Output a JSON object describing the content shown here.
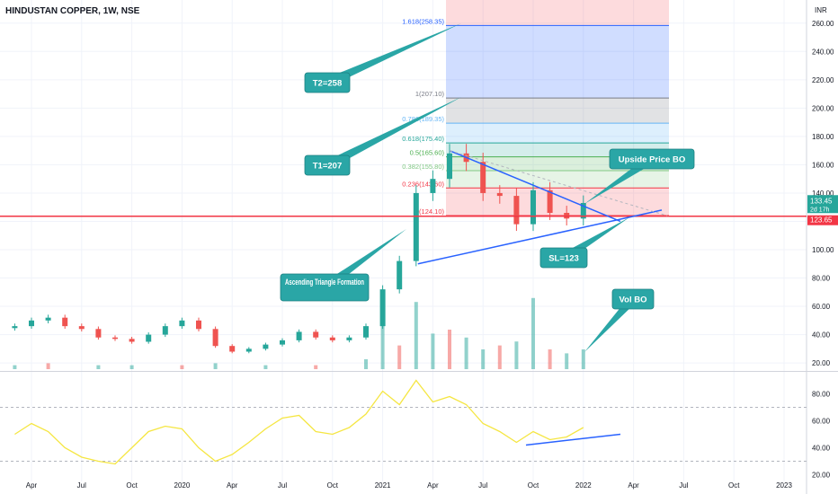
{
  "chart_data": {
    "type": "candlestick",
    "title": "HINDUSTAN COPPER, 1W, NSE",
    "currency_label": "INR",
    "x_ticks": [
      "Apr",
      "Jul",
      "Oct",
      "2020",
      "Apr",
      "Jul",
      "Oct",
      "2021",
      "Apr",
      "Jul",
      "Oct",
      "2022",
      "Apr",
      "Jul",
      "Oct",
      "2023"
    ],
    "price_axis": {
      "ticks": [
        20,
        40,
        60,
        80,
        100,
        120,
        140,
        160,
        180,
        200,
        220,
        240,
        260
      ],
      "range": [
        15,
        270
      ]
    },
    "rsi_axis": {
      "ticks": [
        20,
        40,
        60,
        80
      ],
      "range": [
        15,
        95
      ]
    },
    "last_price": {
      "value": "133.45",
      "countdown": "2d 17h"
    },
    "support_level": {
      "value": "123.65"
    },
    "fib_levels": [
      {
        "label": "1.618(258.35)",
        "value": 258.35,
        "color": "#2962ff"
      },
      {
        "label": "1(207.10)",
        "value": 207.1,
        "color": "#787b86"
      },
      {
        "label": "0.786(189.35)",
        "value": 189.35,
        "color": "#64b5f6"
      },
      {
        "label": "0.618(175.40)",
        "value": 175.4,
        "color": "#26a69a"
      },
      {
        "label": "0.5(165.60)",
        "value": 165.6,
        "color": "#4caf50"
      },
      {
        "label": "0.382(155.80)",
        "value": 155.8,
        "color": "#81c784"
      },
      {
        "label": "0.236(143.60)",
        "value": 143.6,
        "color": "#f23645"
      },
      {
        "label": "0(124.10)",
        "value": 124.1,
        "color": "#f23645"
      }
    ],
    "price_series": [
      {
        "x": "2019-03",
        "y": 46
      },
      {
        "x": "2019-04",
        "y": 50
      },
      {
        "x": "2019-05",
        "y": 52
      },
      {
        "x": "2019-06",
        "y": 46
      },
      {
        "x": "2019-07",
        "y": 44
      },
      {
        "x": "2019-08",
        "y": 38
      },
      {
        "x": "2019-09",
        "y": 37
      },
      {
        "x": "2019-10",
        "y": 35
      },
      {
        "x": "2019-11",
        "y": 40
      },
      {
        "x": "2019-12",
        "y": 46
      },
      {
        "x": "2020-01",
        "y": 50
      },
      {
        "x": "2020-02",
        "y": 44
      },
      {
        "x": "2020-03",
        "y": 32
      },
      {
        "x": "2020-04",
        "y": 28
      },
      {
        "x": "2020-05",
        "y": 30
      },
      {
        "x": "2020-06",
        "y": 33
      },
      {
        "x": "2020-07",
        "y": 36
      },
      {
        "x": "2020-08",
        "y": 42
      },
      {
        "x": "2020-09",
        "y": 38
      },
      {
        "x": "2020-10",
        "y": 36
      },
      {
        "x": "2020-11",
        "y": 38
      },
      {
        "x": "2020-12",
        "y": 46
      },
      {
        "x": "2021-01",
        "y": 72
      },
      {
        "x": "2021-02",
        "y": 92
      },
      {
        "x": "2021-03",
        "y": 140
      },
      {
        "x": "2021-04",
        "y": 150
      },
      {
        "x": "2021-05",
        "y": 168
      },
      {
        "x": "2021-06",
        "y": 162
      },
      {
        "x": "2021-07",
        "y": 140
      },
      {
        "x": "2021-08",
        "y": 138
      },
      {
        "x": "2021-09",
        "y": 118
      },
      {
        "x": "2021-10",
        "y": 142
      },
      {
        "x": "2021-11",
        "y": 126
      },
      {
        "x": "2021-12",
        "y": 122
      },
      {
        "x": "2022-01",
        "y": 133
      }
    ],
    "volume_series": [
      {
        "x": "2019-03",
        "y": 2
      },
      {
        "x": "2019-05",
        "y": 3
      },
      {
        "x": "2019-08",
        "y": 2
      },
      {
        "x": "2019-10",
        "y": 2
      },
      {
        "x": "2020-01",
        "y": 2
      },
      {
        "x": "2020-03",
        "y": 3
      },
      {
        "x": "2020-06",
        "y": 2
      },
      {
        "x": "2020-09",
        "y": 2
      },
      {
        "x": "2020-12",
        "y": 5
      },
      {
        "x": "2021-01",
        "y": 22
      },
      {
        "x": "2021-02",
        "y": 12
      },
      {
        "x": "2021-03",
        "y": 34
      },
      {
        "x": "2021-04",
        "y": 18
      },
      {
        "x": "2021-05",
        "y": 20
      },
      {
        "x": "2021-06",
        "y": 16
      },
      {
        "x": "2021-07",
        "y": 10
      },
      {
        "x": "2021-08",
        "y": 12
      },
      {
        "x": "2021-09",
        "y": 14
      },
      {
        "x": "2021-10",
        "y": 36
      },
      {
        "x": "2021-11",
        "y": 10
      },
      {
        "x": "2021-12",
        "y": 8
      },
      {
        "x": "2022-01",
        "y": 10
      }
    ],
    "rsi_series": [
      {
        "x": "2019-03",
        "y": 50
      },
      {
        "x": "2019-04",
        "y": 58
      },
      {
        "x": "2019-05",
        "y": 52
      },
      {
        "x": "2019-06",
        "y": 40
      },
      {
        "x": "2019-07",
        "y": 33
      },
      {
        "x": "2019-08",
        "y": 30
      },
      {
        "x": "2019-09",
        "y": 28
      },
      {
        "x": "2019-10",
        "y": 40
      },
      {
        "x": "2019-11",
        "y": 52
      },
      {
        "x": "2019-12",
        "y": 56
      },
      {
        "x": "2020-01",
        "y": 54
      },
      {
        "x": "2020-02",
        "y": 40
      },
      {
        "x": "2020-03",
        "y": 30
      },
      {
        "x": "2020-04",
        "y": 35
      },
      {
        "x": "2020-05",
        "y": 44
      },
      {
        "x": "2020-06",
        "y": 54
      },
      {
        "x": "2020-07",
        "y": 62
      },
      {
        "x": "2020-08",
        "y": 64
      },
      {
        "x": "2020-09",
        "y": 52
      },
      {
        "x": "2020-10",
        "y": 50
      },
      {
        "x": "2020-11",
        "y": 55
      },
      {
        "x": "2020-12",
        "y": 65
      },
      {
        "x": "2021-01",
        "y": 82
      },
      {
        "x": "2021-02",
        "y": 72
      },
      {
        "x": "2021-03",
        "y": 90
      },
      {
        "x": "2021-04",
        "y": 74
      },
      {
        "x": "2021-05",
        "y": 78
      },
      {
        "x": "2021-06",
        "y": 72
      },
      {
        "x": "2021-07",
        "y": 58
      },
      {
        "x": "2021-08",
        "y": 52
      },
      {
        "x": "2021-09",
        "y": 44
      },
      {
        "x": "2021-10",
        "y": 52
      },
      {
        "x": "2021-11",
        "y": 46
      },
      {
        "x": "2021-12",
        "y": 48
      },
      {
        "x": "2022-01",
        "y": 55
      }
    ],
    "annotations": [
      {
        "text": "T2=258"
      },
      {
        "text": "T1=207"
      },
      {
        "text": "Upside Price BO"
      },
      {
        "text": "SL=123"
      },
      {
        "text": "Ascending Triangle Formation"
      },
      {
        "text": "Vol BO"
      }
    ]
  },
  "colors": {
    "up": "#26a69a",
    "down": "#ef5350",
    "rsi": "#f5e642",
    "trendline": "#2962ff",
    "support": "#f23645",
    "callout": "#2aa6a6"
  }
}
